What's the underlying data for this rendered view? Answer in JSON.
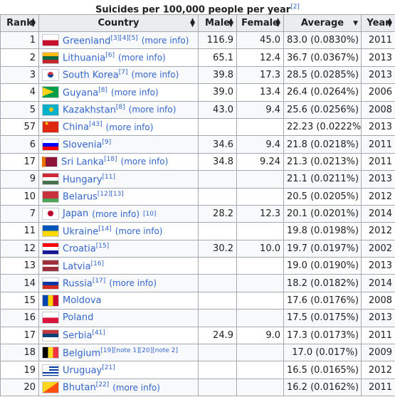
{
  "caption": {
    "title": "Suicides per 100,000 people per year",
    "ref": "[2]"
  },
  "headers": {
    "rank": "Rank",
    "country": "Country",
    "male": "Male",
    "female": "Female",
    "average": "Average",
    "year": "Year"
  },
  "sort_icons": {
    "both": "sort-both-icon",
    "desc": "sort-desc-icon"
  },
  "rows": [
    {
      "rank": "1",
      "flag": "greenland",
      "country": "Greenland",
      "refs": "[3][4][5]",
      "more": "(more info)",
      "male": "116.9",
      "female": "45.0",
      "average": "83.0 (0.0830%)",
      "year": "2011"
    },
    {
      "rank": "2",
      "flag": "lithuania",
      "country": "Lithuania",
      "refs": "[6]",
      "more": "(more info)",
      "male": "65.1",
      "female": "12.4",
      "average": "36.7 (0.0367%)",
      "year": "2013"
    },
    {
      "rank": "3",
      "flag": "korea",
      "country": "South Korea",
      "refs": "[7]",
      "more": "(more info)",
      "male": "39.8",
      "female": "17.3",
      "average": "28.5 (0.0285%)",
      "year": "2013"
    },
    {
      "rank": "4",
      "flag": "guyana",
      "country": "Guyana",
      "refs": "[8]",
      "more": "(more info)",
      "male": "39.0",
      "female": "13.4",
      "average": "26.4 (0.0264%)",
      "year": "2006"
    },
    {
      "rank": "5",
      "flag": "kazakh",
      "country": "Kazakhstan",
      "refs": "[8]",
      "more": "(more info)",
      "male": "43.0",
      "female": "9.4",
      "average": "25.6 (0.0256%)",
      "year": "2008"
    },
    {
      "rank": "57",
      "flag": "china",
      "country": "China",
      "refs": "[43]",
      "more": "(more info)",
      "male": "",
      "female": "",
      "average": "22.23 (0.0222%)",
      "year": "2013"
    },
    {
      "rank": "6",
      "flag": "slovenia",
      "country": "Slovenia",
      "refs": "[9]",
      "more": "",
      "male": "34.6",
      "female": "9.4",
      "average": "21.8 (0.0218%)",
      "year": "2011"
    },
    {
      "rank": "17",
      "flag": "srilanka",
      "country": "Sri Lanka",
      "refs": "[18]",
      "more": "(more info)",
      "male": "34.8",
      "female": "9.24",
      "average": "21.3 (0.0213%)",
      "year": "2011"
    },
    {
      "rank": "9",
      "flag": "hungary",
      "country": "Hungary",
      "refs": "[11]",
      "more": "",
      "male": "",
      "female": "",
      "average": "21.1 (0.0211%)",
      "year": "2013"
    },
    {
      "rank": "10",
      "flag": "belarus",
      "country": "Belarus",
      "refs": "[12][13]",
      "more": "",
      "male": "",
      "female": "",
      "average": "20.5 (0.0205%)",
      "year": "2012"
    },
    {
      "rank": "7",
      "flag": "japan",
      "country": "Japan",
      "refs": "",
      "more": "(more info)",
      "tailref": "[10]",
      "male": "28.2",
      "female": "12.3",
      "average": "20.1 (0.0201%)",
      "year": "2014"
    },
    {
      "rank": "11",
      "flag": "ukraine",
      "country": "Ukraine",
      "refs": "[14]",
      "more": "(more info)",
      "male": "",
      "female": "",
      "average": "19.8 (0.0198%)",
      "year": "2012"
    },
    {
      "rank": "12",
      "flag": "croatia",
      "country": "Croatia",
      "refs": "[15]",
      "more": "",
      "male": "30.2",
      "female": "10.0",
      "average": "19.7 (0.0197%)",
      "year": "2002"
    },
    {
      "rank": "13",
      "flag": "latvia",
      "country": "Latvia",
      "refs": "[16]",
      "more": "",
      "male": "",
      "female": "",
      "average": "19.0 (0.0190%)",
      "year": "2013"
    },
    {
      "rank": "14",
      "flag": "russia",
      "country": "Russia",
      "refs": "[17]",
      "more": "(more info)",
      "male": "",
      "female": "",
      "average": "18.2 (0.0182%)",
      "year": "2014"
    },
    {
      "rank": "15",
      "flag": "moldova",
      "country": "Moldova",
      "refs": "",
      "more": "",
      "male": "",
      "female": "",
      "average": "17.6 (0.0176%)",
      "year": "2008"
    },
    {
      "rank": "16",
      "flag": "poland",
      "country": "Poland",
      "refs": "",
      "more": "",
      "male": "",
      "female": "",
      "average": "17.5 (0.0175%)",
      "year": "2013"
    },
    {
      "rank": "17",
      "flag": "serbia",
      "country": "Serbia",
      "refs": "[41]",
      "more": "",
      "male": "24.9",
      "female": "9.0",
      "average": "17.3 (0.0173%)",
      "year": "2011"
    },
    {
      "rank": "18",
      "flag": "belgium",
      "country": "Belgium",
      "refs": "[19][note 1][20][note 2]",
      "more": "",
      "male": "",
      "female": "",
      "average": "17.0 (0.017%)",
      "year": "2009"
    },
    {
      "rank": "19",
      "flag": "uruguay",
      "country": "Uruguay",
      "refs": "[21]",
      "more": "",
      "male": "",
      "female": "",
      "average": "16.5 (0.0165%)",
      "year": "2012"
    },
    {
      "rank": "20",
      "flag": "bhutan",
      "country": "Bhutan",
      "refs": "[22]",
      "more": "(more info)",
      "male": "",
      "female": "",
      "average": "16.2 (0.0162%)",
      "year": "2011"
    }
  ]
}
